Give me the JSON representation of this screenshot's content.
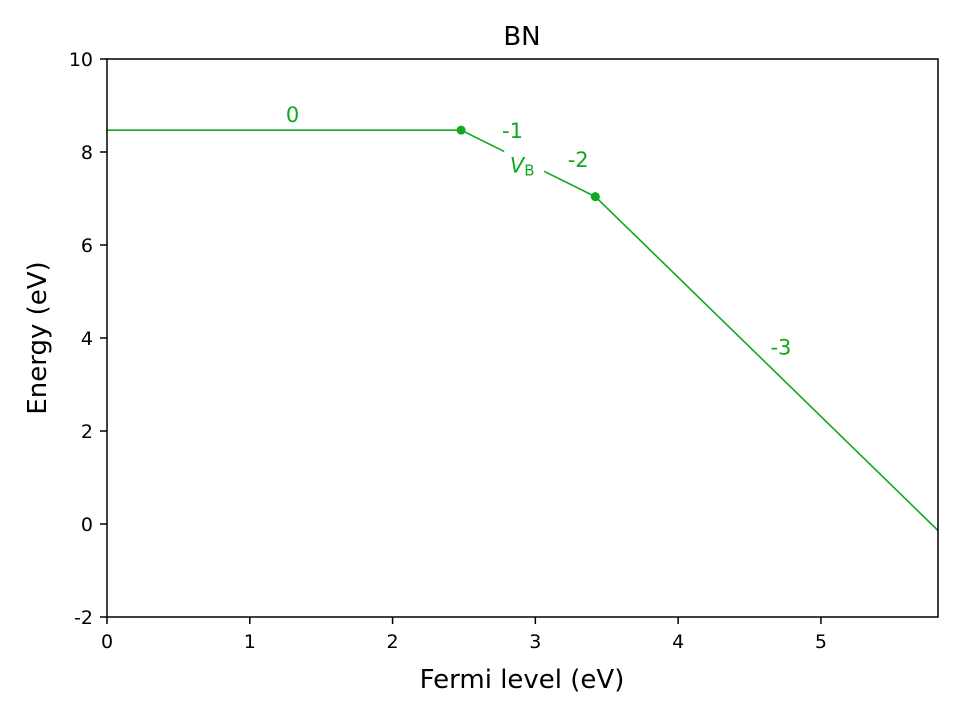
{
  "chart_data": {
    "type": "line",
    "title": "BN",
    "xlabel": "Fermi level (eV)",
    "ylabel": "Energy (eV)",
    "xlim": [
      0,
      5.82
    ],
    "ylim": [
      -2,
      10
    ],
    "xticks": [
      0,
      1,
      2,
      3,
      4,
      5
    ],
    "yticks": [
      -2,
      0,
      2,
      4,
      6,
      8,
      10
    ],
    "grid": false,
    "color": "#12a81e",
    "series": [
      {
        "defect_label": "V",
        "defect_subscript": "B",
        "x": [
          0,
          2.48,
          3.42,
          5.82
        ],
        "y": [
          8.47,
          8.47,
          7.04,
          -0.14
        ],
        "transition_points": [
          {
            "x": 2.48,
            "y": 8.47
          },
          {
            "x": 3.42,
            "y": 7.04
          }
        ],
        "charge_state_labels": [
          {
            "text": "0",
            "x": 1.3,
            "y": 8.65
          },
          {
            "text": "-1",
            "x": 2.84,
            "y": 8.3
          },
          {
            "text": "-2",
            "x": 3.3,
            "y": 7.68
          },
          {
            "text": "-3",
            "x": 4.72,
            "y": 3.65
          }
        ]
      }
    ]
  }
}
